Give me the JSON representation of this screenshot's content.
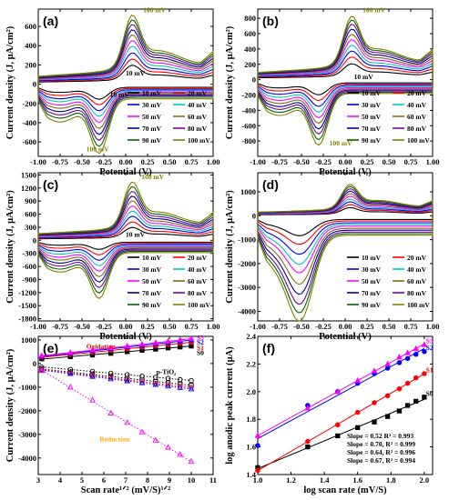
{
  "chart_data": [
    {
      "panel_label": "(a)",
      "type": "line",
      "xlabel": "Potential (V)",
      "ylabel": "Current density (J, µA/cm²)",
      "xlim": [
        -1.0,
        1.0
      ],
      "ylim": [
        -750,
        780
      ],
      "xticks": [
        -1.0,
        -0.75,
        -0.5,
        -0.25,
        0.0,
        0.25,
        0.5,
        0.75,
        1.0
      ],
      "xtick_labels": [
        "-1.00",
        "-0.75",
        "-0.50",
        "-0.25",
        "0.00",
        "0.25",
        "0.50",
        "0.75",
        "1.00"
      ],
      "yticks": [
        -600,
        -400,
        -200,
        0,
        200,
        400,
        600
      ],
      "ytick_labels": [
        "-600",
        "-400",
        "-200",
        "0",
        "200",
        "400",
        "600"
      ],
      "annotations": [
        {
          "text": "100 mV",
          "x": 0.2,
          "y": 745,
          "color": "#808000"
        },
        {
          "text": "10 mV",
          "x": 0.0,
          "y": 90,
          "color": "#000000"
        },
        {
          "text": "10 mV",
          "x": -0.18,
          "y": -130,
          "color": "#000000"
        },
        {
          "text": "100 mV",
          "x": -0.45,
          "y": -700,
          "color": "#808000"
        }
      ],
      "series": [
        {
          "name": "10 mV",
          "color": "#000000",
          "peak_ox": 200,
          "peak_red": -150
        },
        {
          "name": "20 mV",
          "color": "#ff0000",
          "peak_ox": 265,
          "peak_red": -205
        },
        {
          "name": "30 mV",
          "color": "#0000ff",
          "peak_ox": 330,
          "peak_red": -265
        },
        {
          "name": "40 mV",
          "color": "#00c8c8",
          "peak_ox": 400,
          "peak_red": -320
        },
        {
          "name": "50 mV",
          "color": "#ff00ff",
          "peak_ox": 460,
          "peak_red": -380
        },
        {
          "name": "60 mV",
          "color": "#8b6914",
          "peak_ox": 520,
          "peak_red": -440
        },
        {
          "name": "70 mV",
          "color": "#00008b",
          "peak_ox": 575,
          "peak_red": -500
        },
        {
          "name": "80 mV",
          "color": "#7b00b4",
          "peak_ox": 630,
          "peak_red": -560
        },
        {
          "name": "90 mV",
          "color": "#006400",
          "peak_ox": 680,
          "peak_red": -620
        },
        {
          "name": "100 mV",
          "color": "#808000",
          "peak_ox": 730,
          "peak_red": -690
        }
      ]
    },
    {
      "panel_label": "(b)",
      "type": "line",
      "xlabel": "Potential (V)",
      "ylabel": "Current density (J, µA/cm²)",
      "xlim": [
        -1.0,
        1.0
      ],
      "ylim": [
        -1000,
        920
      ],
      "xticks": [
        -1.0,
        -0.75,
        -0.5,
        -0.25,
        0.0,
        0.25,
        0.5,
        0.75,
        1.0
      ],
      "xtick_labels": [
        "-1.00",
        "-0.75",
        "-0.50",
        "-0.25",
        "0.00",
        "0.25",
        "0.50",
        "0.75",
        "1.00"
      ],
      "yticks": [
        -800,
        -600,
        -400,
        -200,
        0,
        200,
        400,
        600,
        800
      ],
      "ytick_labels": [
        "-800",
        "-600",
        "-400",
        "-200",
        "0",
        "200",
        "400",
        "600",
        "800"
      ],
      "annotations": [
        {
          "text": "100 mV",
          "x": 0.2,
          "y": 880,
          "color": "#808000"
        },
        {
          "text": "10 mV",
          "x": 0.1,
          "y": 10,
          "color": "#000000"
        },
        {
          "text": "100 mV",
          "x": -0.18,
          "y": -860,
          "color": "#808000"
        }
      ],
      "series": [
        {
          "name": "10 mV",
          "color": "#000000",
          "peak_ox": 210,
          "peak_red": -190
        },
        {
          "name": "20 mV",
          "color": "#ff0000",
          "peak_ox": 300,
          "peak_red": -260
        },
        {
          "name": "30 mV",
          "color": "#0000ff",
          "peak_ox": 380,
          "peak_red": -335
        },
        {
          "name": "40 mV",
          "color": "#00c8c8",
          "peak_ox": 455,
          "peak_red": -405
        },
        {
          "name": "50 mV",
          "color": "#ff00ff",
          "peak_ox": 530,
          "peak_red": -475
        },
        {
          "name": "60 mV",
          "color": "#8b6914",
          "peak_ox": 600,
          "peak_red": -545
        },
        {
          "name": "70 mV",
          "color": "#00008b",
          "peak_ox": 670,
          "peak_red": -615
        },
        {
          "name": "80 mV",
          "color": "#7b00b4",
          "peak_ox": 735,
          "peak_red": -680
        },
        {
          "name": "90 mV",
          "color": "#006400",
          "peak_ox": 790,
          "peak_red": -750
        },
        {
          "name": "100 mV",
          "color": "#808000",
          "peak_ox": 840,
          "peak_red": -820
        }
      ]
    },
    {
      "panel_label": "(c)",
      "type": "line",
      "xlabel": "Potential (V)",
      "ylabel": "Current density (J, µA/cm²)",
      "xlim": [
        -1.0,
        1.0
      ],
      "ylim": [
        -1850,
        1550
      ],
      "xticks": [
        -1.0,
        -0.75,
        -0.5,
        -0.25,
        0.0,
        0.25,
        0.5,
        0.75,
        1.0
      ],
      "xtick_labels": [
        "-1.00",
        "-0.75",
        "-0.50",
        "-0.25",
        "0.00",
        "0.25",
        "0.50",
        "0.75",
        "1.00"
      ],
      "yticks": [
        -1800,
        -1500,
        -1200,
        -900,
        -600,
        -300,
        0,
        300,
        600,
        900,
        1200,
        1500
      ],
      "ytick_labels": [
        "-1800",
        "-1500",
        "-1200",
        "-900",
        "-600",
        "-300",
        "0",
        "300",
        "600",
        "900",
        "1200",
        "1500"
      ],
      "annotations": [
        {
          "text": "100 mV",
          "x": 0.18,
          "y": 1400,
          "color": "#808000"
        },
        {
          "text": "10 mV",
          "x": 0.0,
          "y": 80,
          "color": "#000000"
        }
      ],
      "series": [
        {
          "name": "10 mV",
          "color": "#000000",
          "peak_ox": 300,
          "peak_red": -200
        },
        {
          "name": "20 mV",
          "color": "#ff0000",
          "peak_ox": 430,
          "peak_red": -320
        },
        {
          "name": "30 mV",
          "color": "#0000ff",
          "peak_ox": 560,
          "peak_red": -440
        },
        {
          "name": "40 mV",
          "color": "#00c8c8",
          "peak_ox": 680,
          "peak_red": -560
        },
        {
          "name": "50 mV",
          "color": "#ff00ff",
          "peak_ox": 800,
          "peak_red": -680
        },
        {
          "name": "60 mV",
          "color": "#8b6914",
          "peak_ox": 920,
          "peak_red": -800
        },
        {
          "name": "70 mV",
          "color": "#00008b",
          "peak_ox": 1030,
          "peak_red": -920
        },
        {
          "name": "80 mV",
          "color": "#7b00b4",
          "peak_ox": 1140,
          "peak_red": -1040
        },
        {
          "name": "90 mV",
          "color": "#006400",
          "peak_ox": 1250,
          "peak_red": -1160
        },
        {
          "name": "100 mV",
          "color": "#808000",
          "peak_ox": 1360,
          "peak_red": -1280
        }
      ]
    },
    {
      "panel_label": "(d)",
      "type": "line",
      "xlabel": "Potential (V)",
      "ylabel": "Current density (J, µA/cm²)",
      "xlim": [
        -1.0,
        1.0
      ],
      "ylim": [
        -4400,
        1800
      ],
      "xticks": [
        -1.0,
        -0.75,
        -0.5,
        -0.25,
        0.0,
        0.25,
        0.5,
        0.75,
        1.0
      ],
      "xtick_labels": [
        "-1.00",
        "-0.75",
        "-0.50",
        "-0.25",
        "0.00",
        "0.25",
        "0.50",
        "0.75",
        "1.00"
      ],
      "yticks": [
        -4000,
        -3000,
        -2000,
        -1000,
        0,
        1000
      ],
      "ytick_labels": [
        "-4000",
        "-3000",
        "-2000",
        "-1000",
        "0",
        "1000"
      ],
      "series": [
        {
          "name": "10 mV",
          "color": "#000000",
          "peak_ox": 350,
          "peak_red": -700
        },
        {
          "name": "20 mV",
          "color": "#ff0000",
          "peak_ox": 480,
          "peak_red": -1000
        },
        {
          "name": "30 mV",
          "color": "#0000ff",
          "peak_ox": 600,
          "peak_red": -1350
        },
        {
          "name": "40 mV",
          "color": "#00c8c8",
          "peak_ox": 720,
          "peak_red": -1700
        },
        {
          "name": "50 mV",
          "color": "#ff00ff",
          "peak_ox": 840,
          "peak_red": -2000
        },
        {
          "name": "60 mV",
          "color": "#8b6914",
          "peak_ox": 950,
          "peak_red": -2400
        },
        {
          "name": "70 mV",
          "color": "#00008b",
          "peak_ox": 1060,
          "peak_red": -2750
        },
        {
          "name": "80 mV",
          "color": "#7b00b4",
          "peak_ox": 1160,
          "peak_red": -3100
        },
        {
          "name": "90 mV",
          "color": "#006400",
          "peak_ox": 1260,
          "peak_red": -3400
        },
        {
          "name": "100 mV",
          "color": "#808000",
          "peak_ox": 1350,
          "peak_red": -3700
        }
      ]
    },
    {
      "panel_label": "(e)",
      "type": "scatter",
      "xlabel": "Scan rate¹ᐟ² (mV/S)¹ᐟ²",
      "ylabel": "Current density (J, µA/cm²)",
      "xlim": [
        3,
        11
      ],
      "ylim": [
        -4700,
        1150
      ],
      "xticks": [
        3,
        4,
        5,
        6,
        7,
        8,
        9,
        10,
        11
      ],
      "xtick_labels": [
        "3",
        "4",
        "5",
        "6",
        "7",
        "8",
        "9",
        "10",
        "11"
      ],
      "yticks": [
        -4000,
        -3000,
        -2000,
        -1000,
        0,
        1000
      ],
      "ytick_labels": [
        "-4000",
        "-3000",
        "-2000",
        "-1000",
        "0",
        "1000"
      ],
      "annotations": [
        {
          "text": "Oxidation",
          "x": 5.2,
          "y": 640,
          "color": "#ff0000"
        },
        {
          "text": "p-TiO₂",
          "x": 8.4,
          "y": -440,
          "color": "#000000"
        },
        {
          "text": "Reduction",
          "x": 5.8,
          "y": -3300,
          "color": "#ffa500"
        },
        {
          "text": "S3",
          "x": 10.25,
          "y": 1000,
          "color": "#ff00ff"
        },
        {
          "text": "S2",
          "x": 10.25,
          "y": 800,
          "color": "#0000ff"
        },
        {
          "text": "S1",
          "x": 10.25,
          "y": 580,
          "color": "#ff0000"
        },
        {
          "text": "S0",
          "x": 10.25,
          "y": 360,
          "color": "#000000"
        }
      ],
      "x": [
        3.16,
        4.47,
        5.48,
        6.32,
        7.07,
        7.75,
        8.37,
        8.94,
        9.49,
        10.0
      ],
      "series": [
        {
          "name": "S0 ox",
          "color": "#000000",
          "marker": "square",
          "values": [
            200,
            290,
            360,
            430,
            500,
            560,
            610,
            660,
            700,
            740
          ]
        },
        {
          "name": "S1 ox",
          "color": "#ff0000",
          "marker": "circle",
          "values": [
            270,
            380,
            470,
            550,
            620,
            690,
            750,
            800,
            850,
            900
          ]
        },
        {
          "name": "S2 ox",
          "color": "#0000ff",
          "marker": "triangle",
          "values": [
            300,
            430,
            530,
            620,
            700,
            770,
            830,
            890,
            940,
            990
          ]
        },
        {
          "name": "S3 ox",
          "color": "#ff00ff",
          "marker": "triangle",
          "values": [
            330,
            460,
            570,
            660,
            740,
            820,
            880,
            940,
            1000,
            1050
          ]
        },
        {
          "name": "p-TiO₂",
          "color": "#000000",
          "marker": "circle-open",
          "dotted": true,
          "values": [
            -150,
            -250,
            -330,
            -410,
            -470,
            -530,
            -580,
            -630,
            -680,
            -720
          ]
        },
        {
          "name": "S0 red",
          "color": "#000000",
          "marker": "square-open",
          "dotted": true,
          "values": [
            -230,
            -360,
            -460,
            -550,
            -630,
            -700,
            -760,
            -820,
            -870,
            -920
          ]
        },
        {
          "name": "S1 red",
          "color": "#ff0000",
          "marker": "circle-open",
          "dotted": true,
          "values": [
            -260,
            -400,
            -510,
            -600,
            -690,
            -770,
            -840,
            -900,
            -960,
            -1010
          ]
        },
        {
          "name": "S2 red",
          "color": "#0000ff",
          "marker": "triangle-open",
          "dotted": true,
          "values": [
            -280,
            -430,
            -550,
            -650,
            -740,
            -820,
            -890,
            -960,
            -1020,
            -1080
          ]
        },
        {
          "name": "S3 red",
          "color": "#ff00ff",
          "marker": "triangle-open",
          "dotted": true,
          "values": [
            -300,
            -1000,
            -1550,
            -2100,
            -2500,
            -2900,
            -3250,
            -3550,
            -3850,
            -4150
          ]
        }
      ]
    },
    {
      "panel_label": "(f)",
      "type": "scatter",
      "xlabel": "log scan rate (mV/S)",
      "ylabel": "log anodic peak current (µA)",
      "xlim": [
        1.0,
        2.05
      ],
      "ylim": [
        1.4,
        2.4
      ],
      "xticks": [
        1.0,
        1.2,
        1.4,
        1.6,
        1.8,
        2.0
      ],
      "xtick_labels": [
        "1.0",
        "1.2",
        "1.4",
        "1.6",
        "1.8",
        "2.0"
      ],
      "yticks": [
        1.4,
        1.6,
        1.8,
        2.0,
        2.2,
        2.4
      ],
      "ytick_labels": [
        "1.4",
        "1.6",
        "1.8",
        "2.0",
        "2.2",
        "2.4"
      ],
      "annotations": [
        {
          "text": "S3",
          "x": 2.01,
          "y": 2.35,
          "color": "#ff00ff"
        },
        {
          "text": "S2",
          "x": 2.01,
          "y": 2.3,
          "color": "#0000ff"
        },
        {
          "text": "S1",
          "x": 2.01,
          "y": 2.14,
          "color": "#ff0000"
        },
        {
          "text": "S0",
          "x": 2.01,
          "y": 1.97,
          "color": "#000000"
        }
      ],
      "legend": [
        {
          "text": "Slope = 0.52 R² = 0.993",
          "color": "#000000"
        },
        {
          "text": "Slope = 0.70, R² = 0.999",
          "color": "#ff0000"
        },
        {
          "text": "Slope = 0.64, R² = 0.996",
          "color": "#0000ff"
        },
        {
          "text": "Slope = 0.67, R² = 0.994",
          "color": "#ff00ff"
        }
      ],
      "x": [
        1.0,
        1.3,
        1.48,
        1.6,
        1.7,
        1.78,
        1.85,
        1.9,
        1.95,
        2.0
      ],
      "series": [
        {
          "name": "S0",
          "color": "#000000",
          "marker": "square",
          "values": [
            1.45,
            1.6,
            1.68,
            1.74,
            1.78,
            1.82,
            1.86,
            1.9,
            1.93,
            1.96
          ]
        },
        {
          "name": "S1",
          "color": "#ff0000",
          "marker": "circle",
          "values": [
            1.43,
            1.64,
            1.76,
            1.85,
            1.92,
            1.97,
            2.02,
            2.06,
            2.1,
            2.13
          ]
        },
        {
          "name": "S2",
          "color": "#0000ff",
          "marker": "circle",
          "values": [
            1.61,
            1.9,
            2.0,
            2.06,
            2.13,
            2.17,
            2.21,
            2.24,
            2.27,
            2.29
          ]
        },
        {
          "name": "S3",
          "color": "#ff00ff",
          "marker": "triangle",
          "values": [
            1.68,
            1.88,
            2.0,
            2.08,
            2.15,
            2.2,
            2.25,
            2.28,
            2.31,
            2.34
          ]
        }
      ]
    }
  ]
}
